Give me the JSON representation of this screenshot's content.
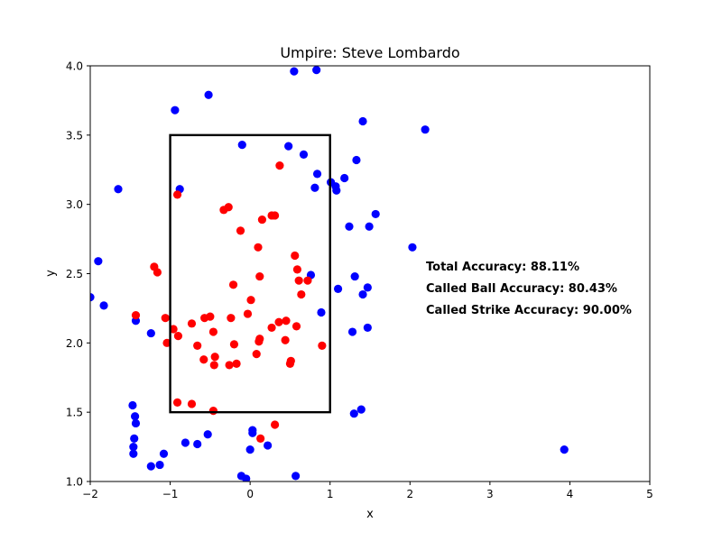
{
  "chart_data": {
    "type": "scatter",
    "title": "Umpire: Steve Lombardo",
    "xlabel": "x",
    "ylabel": "y",
    "xlim": [
      -2,
      5
    ],
    "ylim": [
      1.0,
      4.0
    ],
    "xticks": [
      "−2",
      "−1",
      "0",
      "1",
      "2",
      "3",
      "4",
      "5"
    ],
    "yticks": [
      "1.0",
      "1.5",
      "2.0",
      "2.5",
      "3.0",
      "3.5",
      "4.0"
    ],
    "grid": false,
    "strike_zone": {
      "x": [
        -1,
        1
      ],
      "y": [
        1.5,
        3.5
      ]
    },
    "annotations": [
      "Total Accuracy: 88.11%",
      "Called Ball Accuracy: 80.43%",
      "Called Strike Accuracy: 90.00%"
    ],
    "series": [
      {
        "color": "#0000ff",
        "points": [
          [
            0.55,
            3.96
          ],
          [
            0.83,
            3.97
          ],
          [
            -0.94,
            3.68
          ],
          [
            -0.52,
            3.79
          ],
          [
            1.41,
            3.6
          ],
          [
            2.19,
            3.54
          ],
          [
            -0.1,
            3.43
          ],
          [
            0.48,
            3.42
          ],
          [
            0.67,
            3.36
          ],
          [
            1.33,
            3.32
          ],
          [
            -1.65,
            3.11
          ],
          [
            -0.88,
            3.11
          ],
          [
            0.84,
            3.22
          ],
          [
            1.01,
            3.16
          ],
          [
            1.07,
            3.13
          ],
          [
            1.08,
            3.1
          ],
          [
            1.18,
            3.19
          ],
          [
            0.81,
            3.12
          ],
          [
            1.57,
            2.93
          ],
          [
            1.24,
            2.84
          ],
          [
            1.49,
            2.84
          ],
          [
            2.03,
            2.69
          ],
          [
            -1.9,
            2.59
          ],
          [
            0.76,
            2.49
          ],
          [
            1.31,
            2.48
          ],
          [
            1.1,
            2.39
          ],
          [
            1.41,
            2.35
          ],
          [
            1.47,
            2.4
          ],
          [
            -2.0,
            2.33
          ],
          [
            -1.83,
            2.27
          ],
          [
            0.89,
            2.22
          ],
          [
            -1.43,
            2.16
          ],
          [
            1.47,
            2.11
          ],
          [
            -1.24,
            2.07
          ],
          [
            1.28,
            2.08
          ],
          [
            -1.47,
            1.55
          ],
          [
            -1.44,
            1.47
          ],
          [
            -1.43,
            1.42
          ],
          [
            1.3,
            1.49
          ],
          [
            1.39,
            1.52
          ],
          [
            -1.45,
            1.31
          ],
          [
            -1.46,
            1.25
          ],
          [
            -1.46,
            1.2
          ],
          [
            -1.08,
            1.2
          ],
          [
            -1.24,
            1.11
          ],
          [
            -1.13,
            1.12
          ],
          [
            -0.81,
            1.28
          ],
          [
            -0.66,
            1.27
          ],
          [
            -0.53,
            1.34
          ],
          [
            0.03,
            1.35
          ],
          [
            0.03,
            1.37
          ],
          [
            0.22,
            1.26
          ],
          [
            0.0,
            1.23
          ],
          [
            -0.11,
            1.04
          ],
          [
            -0.05,
            1.02
          ],
          [
            0.57,
            1.04
          ],
          [
            3.93,
            1.23
          ]
        ]
      },
      {
        "color": "#ff0000",
        "points": [
          [
            0.37,
            3.28
          ],
          [
            -0.91,
            3.07
          ],
          [
            -0.33,
            2.96
          ],
          [
            -0.27,
            2.98
          ],
          [
            0.15,
            2.89
          ],
          [
            0.27,
            2.92
          ],
          [
            0.31,
            2.92
          ],
          [
            -0.12,
            2.81
          ],
          [
            0.1,
            2.69
          ],
          [
            0.56,
            2.63
          ],
          [
            -1.2,
            2.55
          ],
          [
            -1.16,
            2.51
          ],
          [
            0.59,
            2.53
          ],
          [
            0.12,
            2.48
          ],
          [
            0.61,
            2.45
          ],
          [
            0.72,
            2.45
          ],
          [
            -0.21,
            2.42
          ],
          [
            0.64,
            2.35
          ],
          [
            0.01,
            2.31
          ],
          [
            -1.43,
            2.2
          ],
          [
            -1.06,
            2.18
          ],
          [
            -0.03,
            2.21
          ],
          [
            -0.73,
            2.14
          ],
          [
            -0.57,
            2.18
          ],
          [
            -0.5,
            2.19
          ],
          [
            -0.24,
            2.18
          ],
          [
            0.36,
            2.15
          ],
          [
            0.45,
            2.16
          ],
          [
            0.58,
            2.12
          ],
          [
            -0.96,
            2.1
          ],
          [
            -0.9,
            2.05
          ],
          [
            0.27,
            2.11
          ],
          [
            -0.46,
            2.08
          ],
          [
            -1.04,
            2.0
          ],
          [
            -0.66,
            1.98
          ],
          [
            -0.2,
            1.99
          ],
          [
            0.12,
            2.03
          ],
          [
            0.11,
            2.01
          ],
          [
            0.44,
            2.02
          ],
          [
            0.9,
            1.98
          ],
          [
            0.08,
            1.92
          ],
          [
            -0.58,
            1.88
          ],
          [
            -0.44,
            1.9
          ],
          [
            -0.17,
            1.85
          ],
          [
            -0.45,
            1.84
          ],
          [
            -0.26,
            1.84
          ],
          [
            0.5,
            1.85
          ],
          [
            0.51,
            1.87
          ],
          [
            -0.91,
            1.57
          ],
          [
            -0.73,
            1.56
          ],
          [
            -0.46,
            1.51
          ],
          [
            0.31,
            1.41
          ],
          [
            0.13,
            1.31
          ]
        ]
      }
    ]
  }
}
